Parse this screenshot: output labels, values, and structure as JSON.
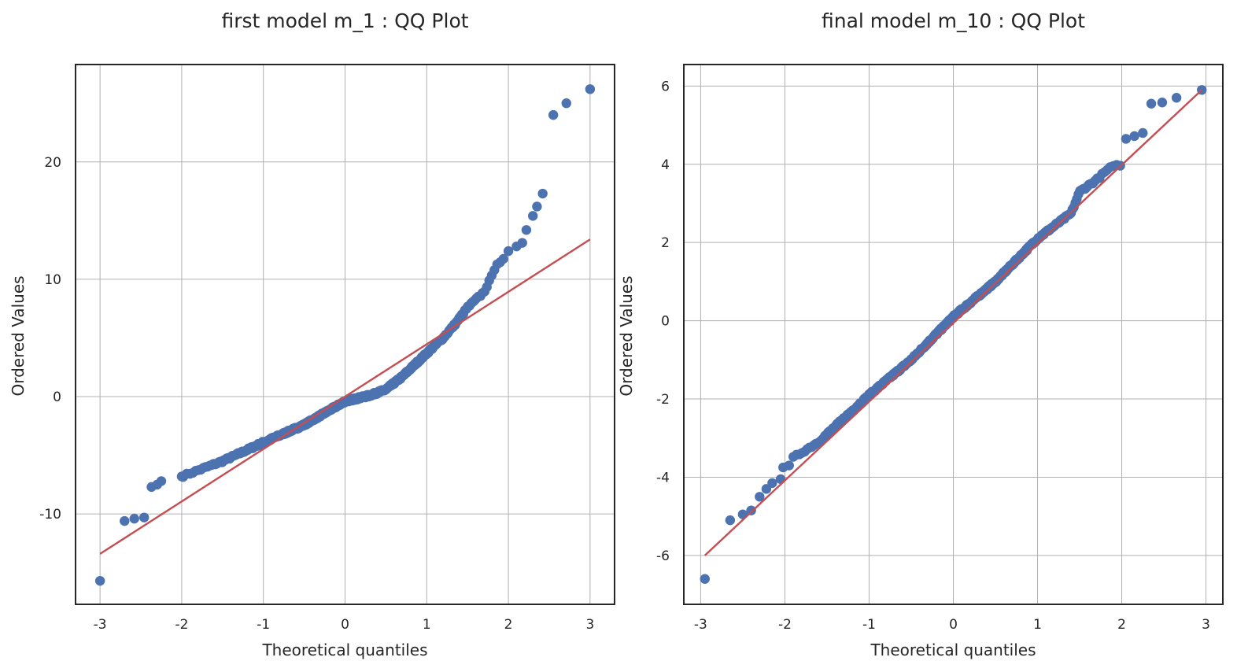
{
  "chart_data": [
    {
      "type": "scatter",
      "title": "first model m_1 : QQ Plot",
      "xlabel": "Theoretical quantiles",
      "ylabel": "Ordered Values",
      "xlim": [
        -3.3,
        3.3
      ],
      "ylim": [
        -17.7,
        28.3
      ],
      "xticks": [
        -3,
        -2,
        -1,
        0,
        1,
        2,
        3
      ],
      "yticks": [
        -10,
        0,
        10,
        20
      ],
      "grid": true,
      "fit_line": {
        "x": [
          -3.0,
          3.0
        ],
        "y": [
          -13.4,
          13.4
        ],
        "color": "#c44e52"
      },
      "series_color": "#4c72b0",
      "sample_points": [
        [
          -3.0,
          -15.7
        ],
        [
          -2.7,
          -10.6
        ],
        [
          -2.58,
          -10.4
        ],
        [
          -2.46,
          -10.3
        ],
        [
          -2.37,
          -7.7
        ],
        [
          -2.3,
          -7.5
        ],
        [
          -2.25,
          -7.2
        ],
        [
          -2.0,
          -6.8
        ],
        [
          2.0,
          12.4
        ],
        [
          2.1,
          12.8
        ],
        [
          2.17,
          13.1
        ],
        [
          2.22,
          14.2
        ],
        [
          2.3,
          15.4
        ],
        [
          2.35,
          16.2
        ],
        [
          2.42,
          17.3
        ],
        [
          2.55,
          24.0
        ],
        [
          2.71,
          25.0
        ],
        [
          3.0,
          26.2
        ]
      ],
      "body_quantiles": [
        [
          -2.0,
          -6.8
        ],
        [
          -1.5,
          -5.5
        ],
        [
          -1.0,
          -3.9
        ],
        [
          -0.5,
          -2.4
        ],
        [
          0.0,
          -0.4
        ],
        [
          0.3,
          0.1
        ],
        [
          0.5,
          0.6
        ],
        [
          0.7,
          1.7
        ],
        [
          0.85,
          2.7
        ],
        [
          1.0,
          3.7
        ],
        [
          1.2,
          5.0
        ],
        [
          1.35,
          6.2
        ],
        [
          1.5,
          7.6
        ],
        [
          1.7,
          8.9
        ],
        [
          1.8,
          10.3
        ],
        [
          1.85,
          11.3
        ],
        [
          1.95,
          11.7
        ]
      ],
      "n_points": 400
    },
    {
      "type": "scatter",
      "title": "final model m_10 : QQ Plot",
      "xlabel": "Theoretical quantiles",
      "ylabel": "Ordered Values",
      "xlim": [
        -3.2,
        3.2
      ],
      "ylim": [
        -7.25,
        6.55
      ],
      "xticks": [
        -3,
        -2,
        -1,
        0,
        1,
        2,
        3
      ],
      "yticks": [
        -6,
        -4,
        -2,
        0,
        2,
        4,
        6
      ],
      "grid": true,
      "fit_line": {
        "x": [
          -2.95,
          2.95
        ],
        "y": [
          -6.0,
          5.9
        ],
        "color": "#c44e52"
      },
      "series_color": "#4c72b0",
      "sample_points": [
        [
          -2.95,
          -6.6
        ],
        [
          -2.65,
          -5.1
        ],
        [
          -2.5,
          -4.95
        ],
        [
          -2.4,
          -4.85
        ],
        [
          -2.3,
          -4.5
        ],
        [
          -2.22,
          -4.3
        ],
        [
          -2.15,
          -4.15
        ],
        [
          -2.05,
          -4.05
        ],
        [
          -2.02,
          -3.75
        ],
        [
          -1.95,
          -3.7
        ],
        [
          2.05,
          4.65
        ],
        [
          2.15,
          4.72
        ],
        [
          2.25,
          4.8
        ],
        [
          2.35,
          5.55
        ],
        [
          2.48,
          5.58
        ],
        [
          2.65,
          5.7
        ],
        [
          2.95,
          5.9
        ]
      ],
      "body_quantiles": [
        [
          -1.9,
          -3.5
        ],
        [
          -1.6,
          -3.1
        ],
        [
          -1.3,
          -2.5
        ],
        [
          -1.0,
          -1.9
        ],
        [
          -0.5,
          -1.0
        ],
        [
          0.0,
          0.1
        ],
        [
          0.5,
          1.0
        ],
        [
          1.0,
          2.1
        ],
        [
          1.4,
          2.75
        ],
        [
          1.5,
          3.3
        ],
        [
          1.7,
          3.6
        ],
        [
          1.85,
          3.9
        ],
        [
          2.0,
          4.0
        ]
      ],
      "n_points": 400
    }
  ]
}
